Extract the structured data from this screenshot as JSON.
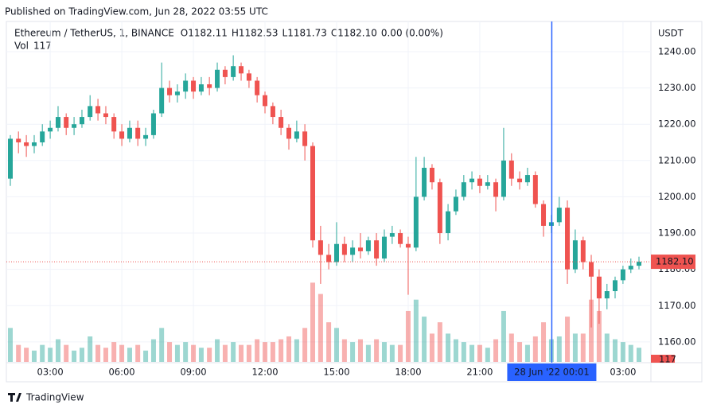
{
  "header": {
    "published": "Published on TradingView.com, Jun 28, 2022 03:55 UTC"
  },
  "footer": {
    "brand": "TradingView"
  },
  "chart_data": {
    "type": "candlestick",
    "symbol": "Ethereum / TetherUS, 1, BINANCE",
    "ohlc": [
      {
        "label": "O",
        "value": "1182.11"
      },
      {
        "label": "H",
        "value": "1182.53"
      },
      {
        "label": "L",
        "value": "1181.73"
      },
      {
        "label": "C",
        "value": "1182.10"
      }
    ],
    "change": "0.00 (0.00%)",
    "volume_label": "Vol",
    "volume_value": "117",
    "axis_unit": "USDT",
    "last_price": {
      "value": 1182.1,
      "label": "1182.10"
    },
    "last_volume": {
      "value": 117,
      "label": "117"
    },
    "crosshair": {
      "x": 24.0167,
      "label": "28 Jun '22   00:01"
    },
    "up_color": "#26a69a",
    "down_color": "#ef5350",
    "crosshair_color": "#2962ff",
    "grid": true,
    "xlim": [
      1.23,
      28.07
    ],
    "ylim": [
      1154.5,
      1248.1
    ],
    "vlim": [
      0,
      600
    ],
    "xticks": [
      {
        "value": 3,
        "label": "03:00"
      },
      {
        "value": 6,
        "label": "06:00"
      },
      {
        "value": 9,
        "label": "09:00"
      },
      {
        "value": 12,
        "label": "12:00"
      },
      {
        "value": 15,
        "label": "15:00"
      },
      {
        "value": 18,
        "label": "18:00"
      },
      {
        "value": 21,
        "label": "21:00"
      },
      {
        "value": 27,
        "label": "03:00"
      }
    ],
    "yticks": [
      {
        "value": 1160,
        "label": "1160.00"
      },
      {
        "value": 1170,
        "label": "1170.00"
      },
      {
        "value": 1180,
        "label": "1180.00"
      },
      {
        "value": 1190,
        "label": "1190.00"
      },
      {
        "value": 1200,
        "label": "1200.00"
      },
      {
        "value": 1210,
        "label": "1210.00"
      },
      {
        "value": 1220,
        "label": "1220.00"
      },
      {
        "value": 1230,
        "label": "1230.00"
      },
      {
        "value": 1240,
        "label": "1240.00"
      }
    ],
    "x": [
      1.33,
      1.67,
      2,
      2.33,
      2.67,
      3,
      3.33,
      3.67,
      4,
      4.33,
      4.67,
      5,
      5.33,
      5.67,
      6,
      6.33,
      6.67,
      7,
      7.33,
      7.67,
      8,
      8.33,
      8.67,
      9,
      9.33,
      9.67,
      10,
      10.33,
      10.67,
      11,
      11.33,
      11.67,
      12,
      12.33,
      12.67,
      13,
      13.33,
      13.67,
      14,
      14.33,
      14.67,
      15,
      15.33,
      15.67,
      16,
      16.33,
      16.67,
      17,
      17.33,
      17.67,
      18,
      18.33,
      18.67,
      19,
      19.33,
      19.67,
      20,
      20.33,
      20.67,
      21,
      21.33,
      21.67,
      22,
      22.33,
      22.67,
      23,
      23.33,
      23.67,
      24,
      24.33,
      24.67,
      25,
      25.33,
      25.67,
      26,
      26.33,
      26.67,
      27,
      27.33,
      27.67
    ],
    "candles": [
      [
        1205,
        1217,
        1203,
        1216,
        60
      ],
      [
        1216,
        1218,
        1212,
        1215,
        30
      ],
      [
        1215,
        1217,
        1211,
        1214,
        25
      ],
      [
        1214,
        1217,
        1212,
        1215,
        20
      ],
      [
        1215,
        1220,
        1214,
        1218,
        30
      ],
      [
        1218,
        1221,
        1216,
        1219,
        25
      ],
      [
        1219,
        1225,
        1218,
        1222,
        40
      ],
      [
        1222,
        1223,
        1217,
        1219,
        30
      ],
      [
        1219,
        1222,
        1217,
        1220,
        20
      ],
      [
        1220,
        1224,
        1219,
        1222,
        25
      ],
      [
        1222,
        1228,
        1221,
        1225,
        45
      ],
      [
        1225,
        1227,
        1221,
        1223,
        30
      ],
      [
        1223,
        1225,
        1220,
        1222,
        25
      ],
      [
        1222,
        1223,
        1216,
        1218,
        35
      ],
      [
        1218,
        1220,
        1214,
        1216,
        30
      ],
      [
        1216,
        1221,
        1215,
        1219,
        25
      ],
      [
        1219,
        1221,
        1214,
        1216,
        30
      ],
      [
        1216,
        1219,
        1214,
        1217,
        20
      ],
      [
        1217,
        1224,
        1216,
        1223,
        40
      ],
      [
        1223,
        1237,
        1222,
        1230,
        60
      ],
      [
        1230,
        1232,
        1226,
        1228,
        35
      ],
      [
        1228,
        1231,
        1226,
        1229,
        30
      ],
      [
        1229,
        1234,
        1227,
        1232,
        35
      ],
      [
        1232,
        1233,
        1227,
        1229,
        30
      ],
      [
        1229,
        1233,
        1228,
        1231,
        25
      ],
      [
        1231,
        1233,
        1228,
        1230,
        25
      ],
      [
        1230,
        1237,
        1229,
        1235,
        40
      ],
      [
        1235,
        1236,
        1231,
        1233,
        30
      ],
      [
        1233,
        1239,
        1232,
        1236,
        35
      ],
      [
        1236,
        1237,
        1232,
        1234,
        30
      ],
      [
        1234,
        1235,
        1230,
        1232,
        30
      ],
      [
        1232,
        1233,
        1226,
        1228,
        40
      ],
      [
        1228,
        1229,
        1223,
        1225,
        35
      ],
      [
        1225,
        1226,
        1220,
        1222,
        35
      ],
      [
        1222,
        1224,
        1217,
        1219,
        40
      ],
      [
        1219,
        1220,
        1213,
        1216,
        45
      ],
      [
        1216,
        1221,
        1215,
        1218,
        40
      ],
      [
        1218,
        1220,
        1210,
        1214,
        60
      ],
      [
        1214,
        1215,
        1186,
        1188,
        140
      ],
      [
        1188,
        1192,
        1176,
        1184,
        120
      ],
      [
        1184,
        1187,
        1180,
        1182,
        70
      ],
      [
        1182,
        1193,
        1181,
        1187,
        60
      ],
      [
        1187,
        1189,
        1182,
        1184,
        40
      ],
      [
        1184,
        1188,
        1182,
        1186,
        35
      ],
      [
        1186,
        1190,
        1183,
        1185,
        40
      ],
      [
        1185,
        1189,
        1184,
        1188,
        30
      ],
      [
        1188,
        1190,
        1181,
        1183,
        40
      ],
      [
        1183,
        1191,
        1182,
        1189,
        35
      ],
      [
        1189,
        1192,
        1187,
        1190,
        30
      ],
      [
        1190,
        1191,
        1186,
        1187,
        30
      ],
      [
        1187,
        1189,
        1173,
        1186,
        90
      ],
      [
        1186,
        1211,
        1185,
        1200,
        110
      ],
      [
        1200,
        1211,
        1199,
        1208,
        80
      ],
      [
        1208,
        1209,
        1202,
        1204,
        50
      ],
      [
        1204,
        1205,
        1187,
        1190,
        70
      ],
      [
        1190,
        1198,
        1188,
        1196,
        50
      ],
      [
        1196,
        1202,
        1195,
        1200,
        40
      ],
      [
        1200,
        1206,
        1199,
        1204,
        35
      ],
      [
        1204,
        1207,
        1202,
        1205,
        30
      ],
      [
        1205,
        1206,
        1201,
        1203,
        30
      ],
      [
        1203,
        1206,
        1202,
        1204,
        25
      ],
      [
        1204,
        1205,
        1196,
        1200,
        40
      ],
      [
        1200,
        1219,
        1199,
        1210,
        90
      ],
      [
        1210,
        1212,
        1203,
        1205,
        50
      ],
      [
        1205,
        1207,
        1202,
        1204,
        35
      ],
      [
        1204,
        1208,
        1203,
        1206,
        30
      ],
      [
        1206,
        1207,
        1197,
        1198,
        45
      ],
      [
        1198,
        1199,
        1189,
        1192,
        70
      ],
      [
        1192,
        1195,
        1190,
        1193,
        40
      ],
      [
        1193,
        1200,
        1192,
        1197,
        45
      ],
      [
        1197,
        1199,
        1176,
        1180,
        80
      ],
      [
        1180,
        1191,
        1179,
        1188,
        50
      ],
      [
        1188,
        1189,
        1180,
        1182,
        50
      ],
      [
        1182,
        1184,
        1164,
        1178,
        110
      ],
      [
        1178,
        1180,
        1165,
        1172,
        90
      ],
      [
        1172,
        1176,
        1169,
        1174,
        50
      ],
      [
        1174,
        1178,
        1172,
        1177,
        40
      ],
      [
        1177,
        1181,
        1176,
        1180,
        35
      ],
      [
        1180,
        1183,
        1179,
        1181,
        30
      ],
      [
        1181,
        1183.5,
        1180,
        1182.1,
        25
      ]
    ]
  }
}
